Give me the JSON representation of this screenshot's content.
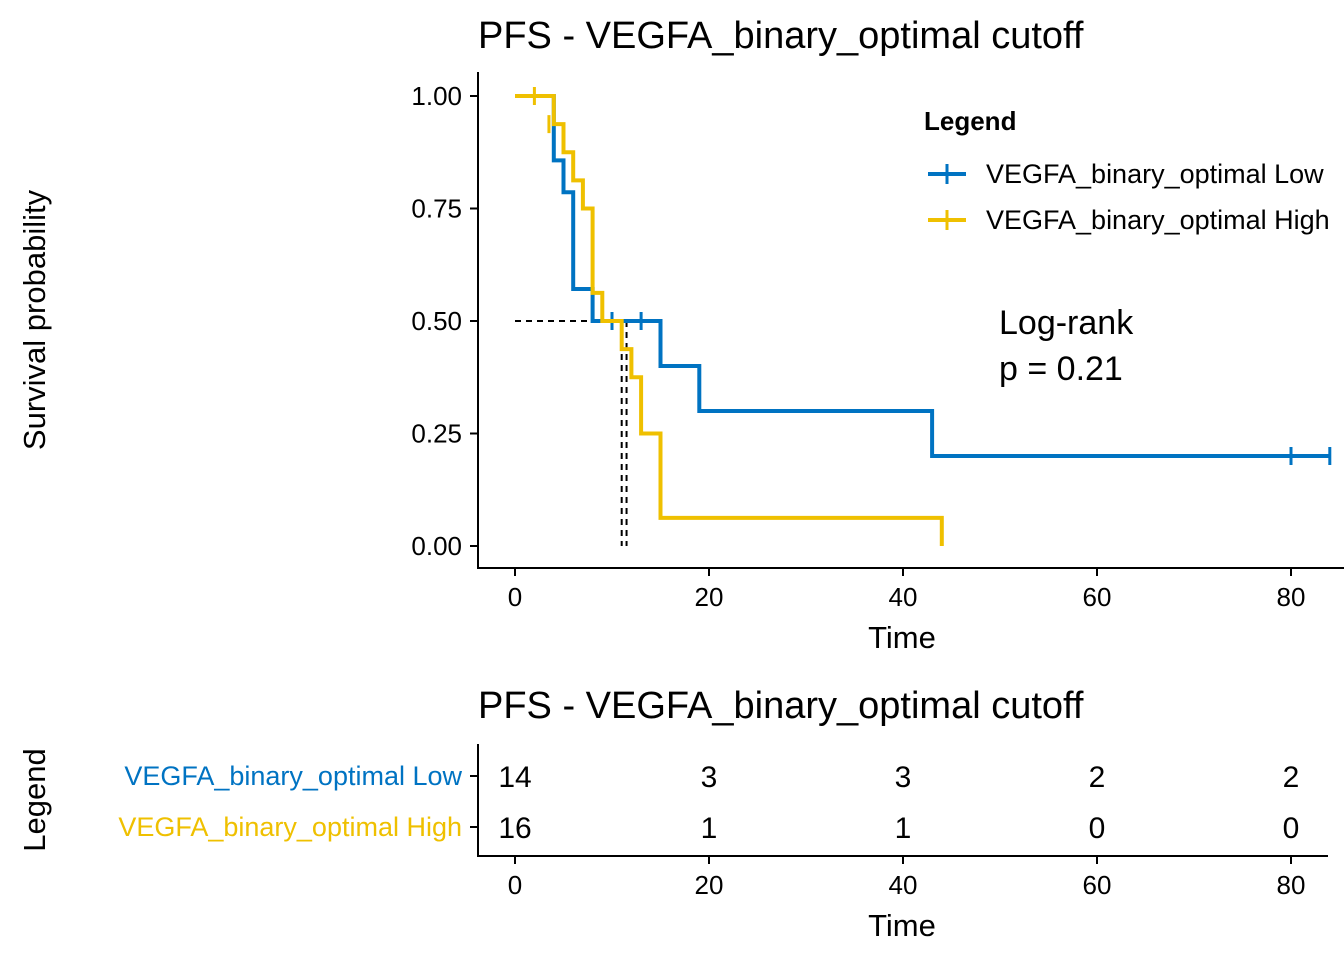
{
  "colors": {
    "low": "#0073C2",
    "high": "#EFC000",
    "axis": "#000000"
  },
  "chart_data": [
    {
      "type": "line",
      "subtype": "kaplan-meier",
      "title": "PFS - VEGFA_binary_optimal cutoff",
      "xlabel": "Time",
      "ylabel": "Survival probability",
      "xlim": [
        0,
        85
      ],
      "ylim": [
        0,
        1
      ],
      "xticks": [
        0,
        20,
        40,
        60,
        80
      ],
      "yticks": [
        0,
        0.25,
        0.5,
        0.75,
        1
      ],
      "ytick_labels": [
        "0.00",
        "0.25",
        "0.50",
        "0.75",
        "1.00"
      ],
      "legend_title": "Legend",
      "legend_position": "top-right",
      "grid": false,
      "annotation": [
        "Log-rank",
        "p = 0.21"
      ],
      "median_survival": [
        {
          "series": "VEGFA_binary_optimal Low",
          "x": 11
        },
        {
          "series": "VEGFA_binary_optimal High",
          "x": 11.5
        }
      ],
      "series": [
        {
          "name": "VEGFA_binary_optimal Low",
          "color_key": "low",
          "steps": [
            [
              0,
              1.0
            ],
            [
              4,
              0.857
            ],
            [
              5,
              0.786
            ],
            [
              6,
              0.571
            ],
            [
              8,
              0.5
            ],
            [
              15,
              0.4
            ],
            [
              19,
              0.3
            ],
            [
              43,
              0.2
            ],
            [
              84,
              0.2
            ]
          ],
          "censors": [
            [
              10,
              0.5
            ],
            [
              13,
              0.5
            ],
            [
              80,
              0.2
            ],
            [
              84,
              0.2
            ]
          ]
        },
        {
          "name": "VEGFA_binary_optimal High",
          "color_key": "high",
          "steps": [
            [
              0,
              1.0
            ],
            [
              4,
              0.9375
            ],
            [
              5,
              0.875
            ],
            [
              6,
              0.8125
            ],
            [
              7,
              0.75
            ],
            [
              8,
              0.5625
            ],
            [
              9,
              0.5
            ],
            [
              11,
              0.4375
            ],
            [
              12,
              0.375
            ],
            [
              13,
              0.25
            ],
            [
              15,
              0.0625
            ],
            [
              44,
              0.0
            ]
          ],
          "censors": [
            [
              2,
              1.0
            ],
            [
              3.5,
              0.9375
            ]
          ]
        }
      ]
    },
    {
      "type": "table",
      "title": "PFS - VEGFA_binary_optimal cutoff",
      "xlabel": "Time",
      "ylabel": "Legend",
      "xticks": [
        0,
        20,
        40,
        60,
        80
      ],
      "rows": [
        {
          "name": "VEGFA_binary_optimal Low",
          "color_key": "low",
          "values": [
            "14",
            "3",
            "3",
            "2",
            "2"
          ]
        },
        {
          "name": "VEGFA_binary_optimal High",
          "color_key": "high",
          "values": [
            "16",
            "1",
            "1",
            "0",
            "0"
          ]
        }
      ]
    }
  ]
}
